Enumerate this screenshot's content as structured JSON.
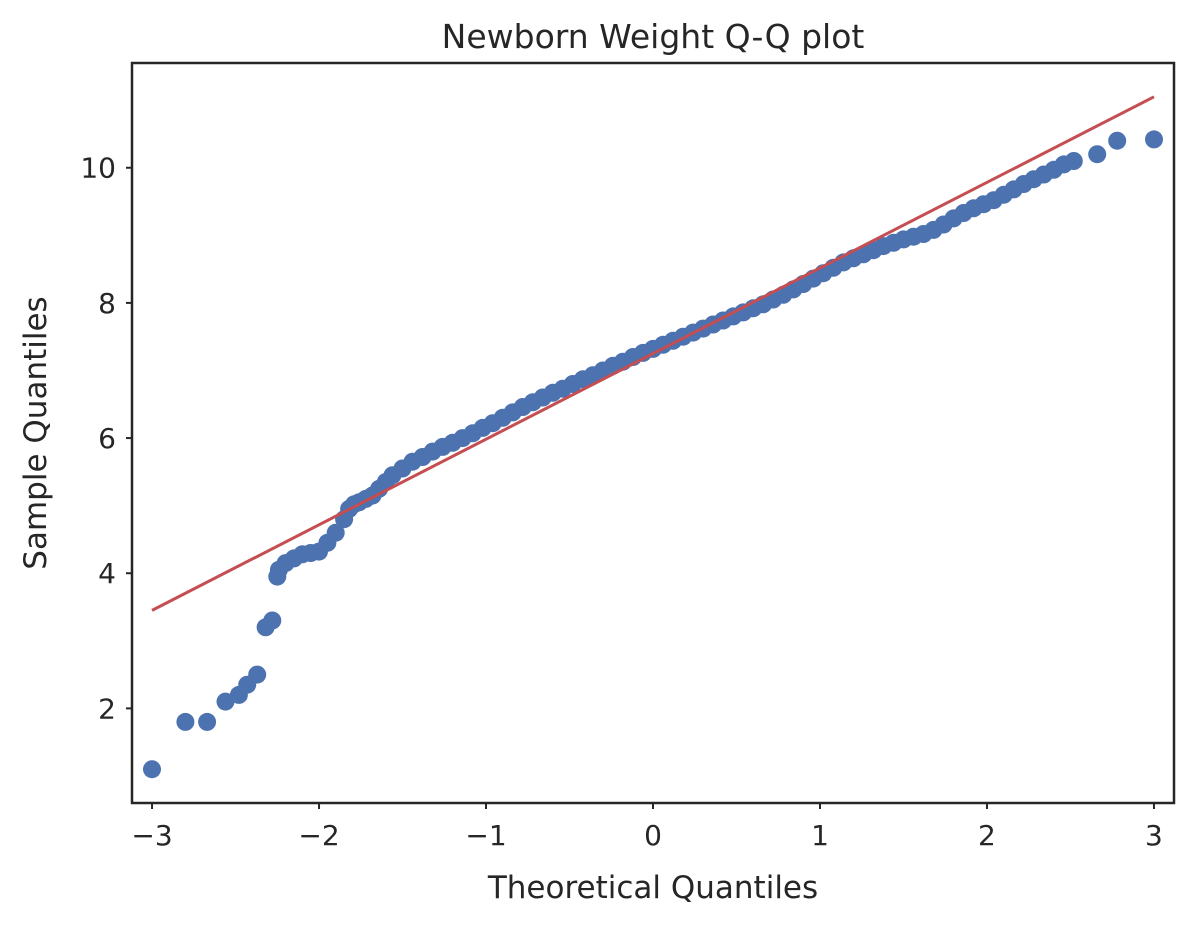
{
  "chart_data": {
    "type": "scatter",
    "title": "Newborn Weight Q-Q plot",
    "xlabel": "Theoretical Quantiles",
    "ylabel": "Sample Quantiles",
    "xlim": [
      -3.12,
      3.12
    ],
    "ylim": [
      0.6,
      11.55
    ],
    "xticks": [
      -3,
      -2,
      -1,
      0,
      1,
      2,
      3
    ],
    "xtick_labels": [
      "−3",
      "−2",
      "−1",
      "0",
      "1",
      "2",
      "3"
    ],
    "yticks": [
      2,
      4,
      6,
      8,
      10
    ],
    "ytick_labels": [
      "2",
      "4",
      "6",
      "8",
      "10"
    ],
    "grid": false,
    "colors": {
      "points": "#4c72b0",
      "line": "#c44e52"
    },
    "reference_line": {
      "x": [
        -3.0,
        3.0
      ],
      "y": [
        3.45,
        11.05
      ]
    },
    "points": {
      "x": [
        -3.0,
        -2.8,
        -2.67,
        -2.56,
        -2.48,
        -2.43,
        -2.37,
        -2.32,
        -2.28,
        -2.25,
        -2.24,
        -2.2,
        -2.15,
        -2.1,
        -2.05,
        -2.0,
        -1.95,
        -1.9,
        -1.85,
        -1.82,
        -1.79,
        -1.76,
        -1.72,
        -1.68,
        -1.64,
        -1.6,
        -1.56,
        -1.5,
        -1.44,
        -1.38,
        -1.32,
        -1.26,
        -1.2,
        -1.14,
        -1.08,
        -1.02,
        -0.96,
        -0.9,
        -0.84,
        -0.78,
        -0.72,
        -0.66,
        -0.6,
        -0.54,
        -0.48,
        -0.42,
        -0.36,
        -0.3,
        -0.24,
        -0.18,
        -0.12,
        -0.06,
        0.0,
        0.06,
        0.12,
        0.18,
        0.24,
        0.3,
        0.36,
        0.42,
        0.48,
        0.54,
        0.6,
        0.66,
        0.72,
        0.78,
        0.84,
        0.9,
        0.96,
        1.02,
        1.08,
        1.14,
        1.2,
        1.26,
        1.32,
        1.38,
        1.44,
        1.5,
        1.56,
        1.62,
        1.68,
        1.74,
        1.8,
        1.86,
        1.92,
        1.98,
        2.04,
        2.1,
        2.16,
        2.22,
        2.28,
        2.34,
        2.4,
        2.46,
        2.52,
        2.66,
        2.78,
        3.0
      ],
      "y": [
        1.1,
        1.8,
        1.8,
        2.1,
        2.2,
        2.35,
        2.5,
        3.2,
        3.3,
        3.95,
        4.05,
        4.15,
        4.22,
        4.28,
        4.3,
        4.32,
        4.45,
        4.6,
        4.8,
        4.95,
        5.02,
        5.05,
        5.1,
        5.15,
        5.25,
        5.35,
        5.45,
        5.55,
        5.65,
        5.72,
        5.8,
        5.87,
        5.93,
        6.0,
        6.07,
        6.15,
        6.22,
        6.3,
        6.38,
        6.46,
        6.53,
        6.6,
        6.67,
        6.73,
        6.8,
        6.87,
        6.93,
        7.0,
        7.07,
        7.13,
        7.2,
        7.26,
        7.32,
        7.38,
        7.44,
        7.5,
        7.56,
        7.62,
        7.68,
        7.74,
        7.8,
        7.86,
        7.92,
        7.98,
        8.05,
        8.12,
        8.2,
        8.28,
        8.36,
        8.44,
        8.52,
        8.6,
        8.66,
        8.72,
        8.78,
        8.84,
        8.89,
        8.94,
        8.98,
        9.02,
        9.08,
        9.16,
        9.25,
        9.33,
        9.4,
        9.46,
        9.52,
        9.6,
        9.68,
        9.76,
        9.83,
        9.9,
        9.97,
        10.05,
        10.1,
        10.2,
        10.4,
        10.42
      ]
    }
  }
}
